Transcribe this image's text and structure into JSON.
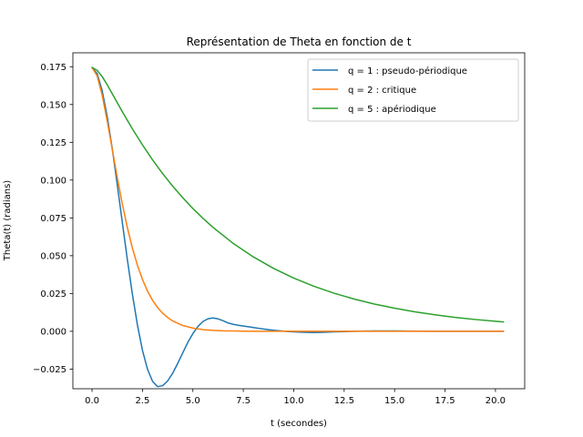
{
  "chart_data": {
    "type": "line",
    "title": "Représentation de Theta en fonction de t",
    "xlabel": "t (secondes)",
    "ylabel": "Theta(t) (radians)",
    "xlim": [
      -0.95,
      21.45
    ],
    "ylim": [
      -0.038,
      0.1842
    ],
    "xticks": [
      0.0,
      2.5,
      5.0,
      7.5,
      10.0,
      12.5,
      15.0,
      17.5,
      20.0
    ],
    "xtick_labels": [
      "0.0",
      "2.5",
      "5.0",
      "7.5",
      "10.0",
      "12.5",
      "15.0",
      "17.5",
      "20.0"
    ],
    "yticks": [
      -0.025,
      0.0,
      0.025,
      0.05,
      0.075,
      0.1,
      0.125,
      0.15,
      0.175
    ],
    "ytick_labels": [
      "−0.025",
      "0.000",
      "0.025",
      "0.050",
      "0.075",
      "0.100",
      "0.125",
      "0.150",
      "0.175"
    ],
    "grid": false,
    "legend_position": "top-right",
    "series": [
      {
        "name": "q = 1 : pseudo-périodique",
        "color": "#1f77b4",
        "x": [
          0,
          0.25,
          0.5,
          0.75,
          1,
          1.25,
          1.5,
          1.75,
          2,
          2.25,
          2.5,
          2.75,
          3,
          3.25,
          3.5,
          3.75,
          4,
          4.25,
          4.5,
          4.75,
          5,
          5.25,
          5.5,
          5.75,
          6,
          6.25,
          6.5,
          6.75,
          7,
          7.25,
          7.5,
          7.75,
          8,
          8.25,
          8.5,
          8.75,
          9,
          9.25,
          9.5,
          9.75,
          10,
          10.5,
          11,
          11.5,
          12,
          12.5,
          13,
          14,
          15,
          16,
          17,
          18,
          19,
          20,
          20.4
        ],
        "y": [
          0.1745,
          0.1705,
          0.1593,
          0.1423,
          0.121,
          0.0971,
          0.0721,
          0.0475,
          0.0246,
          0.0042,
          -0.0126,
          -0.0251,
          -0.0331,
          -0.0366,
          -0.036,
          -0.0328,
          -0.0277,
          -0.0212,
          -0.0142,
          -0.0073,
          -0.0015,
          0.0032,
          0.0065,
          0.0083,
          0.0088,
          0.0082,
          0.007,
          0.0055,
          0.0046,
          0.004,
          0.0035,
          0.003,
          0.0025,
          0.002,
          0.0015,
          0.0011,
          0.0007,
          0.0004,
          0.0001,
          -0.0002,
          -0.0004,
          -0.0007,
          -0.0008,
          -0.0007,
          -0.0004,
          -0.0002,
          0.0,
          0.0002,
          0.0002,
          0.0001,
          0.0,
          0.0,
          0.0,
          0.0,
          0.0
        ]
      },
      {
        "name": "q = 2 : critique",
        "color": "#ff7f0e",
        "x": [
          0,
          0.25,
          0.5,
          0.75,
          1,
          1.25,
          1.5,
          1.75,
          2,
          2.25,
          2.5,
          2.75,
          3,
          3.25,
          3.5,
          3.75,
          4,
          4.5,
          5,
          5.5,
          6,
          6.5,
          7,
          7.5,
          8,
          9,
          10,
          11,
          12,
          14,
          16,
          18,
          20,
          20.4
        ],
        "y": [
          0.1745,
          0.169,
          0.1563,
          0.1393,
          0.1206,
          0.1018,
          0.0843,
          0.0687,
          0.0551,
          0.0437,
          0.0343,
          0.0266,
          0.0205,
          0.0157,
          0.012,
          0.0091,
          0.0068,
          0.0038,
          0.0021,
          0.0011,
          0.0006,
          0.0003,
          0.0002,
          0.0001,
          0.0,
          0.0,
          0.0,
          0.0,
          0.0,
          0.0,
          0.0,
          0.0,
          0.0,
          0.0
        ]
      },
      {
        "name": "q = 5 : apériodique",
        "color": "#2ca02c",
        "x": [
          0,
          0.25,
          0.5,
          0.75,
          1,
          1.5,
          2,
          2.5,
          3,
          3.5,
          4,
          4.5,
          5,
          5.5,
          6,
          7,
          8,
          9,
          10,
          11,
          12,
          13,
          14,
          15,
          16,
          17,
          18,
          19,
          20,
          20.4
        ],
        "y": [
          0.1745,
          0.1727,
          0.1685,
          0.1631,
          0.1572,
          0.1453,
          0.1339,
          0.1233,
          0.1134,
          0.1043,
          0.096,
          0.0883,
          0.0812,
          0.0747,
          0.0687,
          0.0581,
          0.0492,
          0.0416,
          0.0352,
          0.0298,
          0.0252,
          0.0213,
          0.018,
          0.0153,
          0.0129,
          0.0109,
          0.0092,
          0.0078,
          0.0066,
          0.0062
        ]
      }
    ]
  }
}
